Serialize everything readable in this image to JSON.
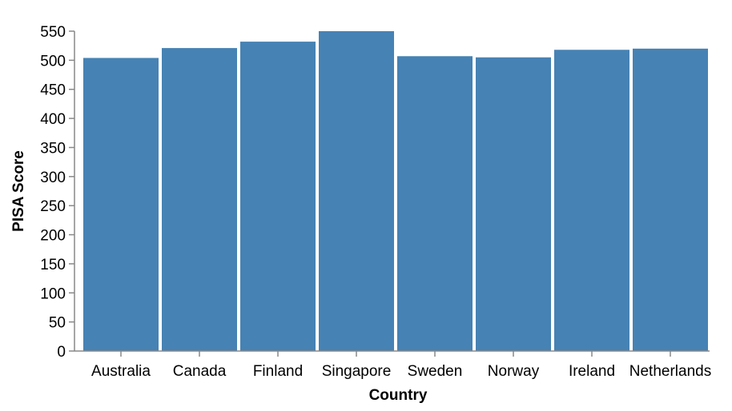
{
  "chart_data": {
    "type": "bar",
    "title": "",
    "xlabel": "Country",
    "ylabel": "PISA Score",
    "categories": [
      "Australia",
      "Canada",
      "Finland",
      "Singapore",
      "Sweden",
      "Norway",
      "Ireland",
      "Netherlands"
    ],
    "values": [
      504,
      521,
      532,
      550,
      507,
      505,
      518,
      520
    ],
    "ylim": [
      0,
      550
    ],
    "yticks": [
      0,
      50,
      100,
      150,
      200,
      250,
      300,
      350,
      400,
      450,
      500,
      550
    ],
    "grid": false,
    "colors": {
      "bar": "#4682b4",
      "axis": "#888888"
    }
  }
}
